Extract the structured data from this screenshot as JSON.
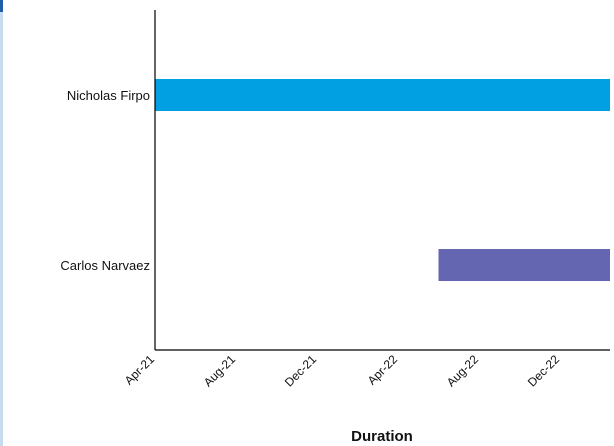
{
  "chart_data": {
    "type": "bar",
    "orientation": "horizontal",
    "subtype": "gantt",
    "categories": [
      "Nicholas Firpo",
      "Carlos Narvaez"
    ],
    "series": [
      {
        "values": [
          {
            "start": "2021-04",
            "end": "2023-04"
          },
          {
            "start": "2022-06",
            "end": "2023-04"
          }
        ]
      }
    ],
    "colors": [
      "#00a0e3",
      "#6466b2"
    ],
    "xlabel": "Duration",
    "ylabel": "",
    "x_ticks": [
      "Apr-21",
      "Aug-21",
      "Dec-21",
      "Apr-22",
      "Aug-22",
      "Dec-22"
    ],
    "x_range": [
      "2021-04",
      "2023-04"
    ],
    "grid": false,
    "legend": "none"
  }
}
